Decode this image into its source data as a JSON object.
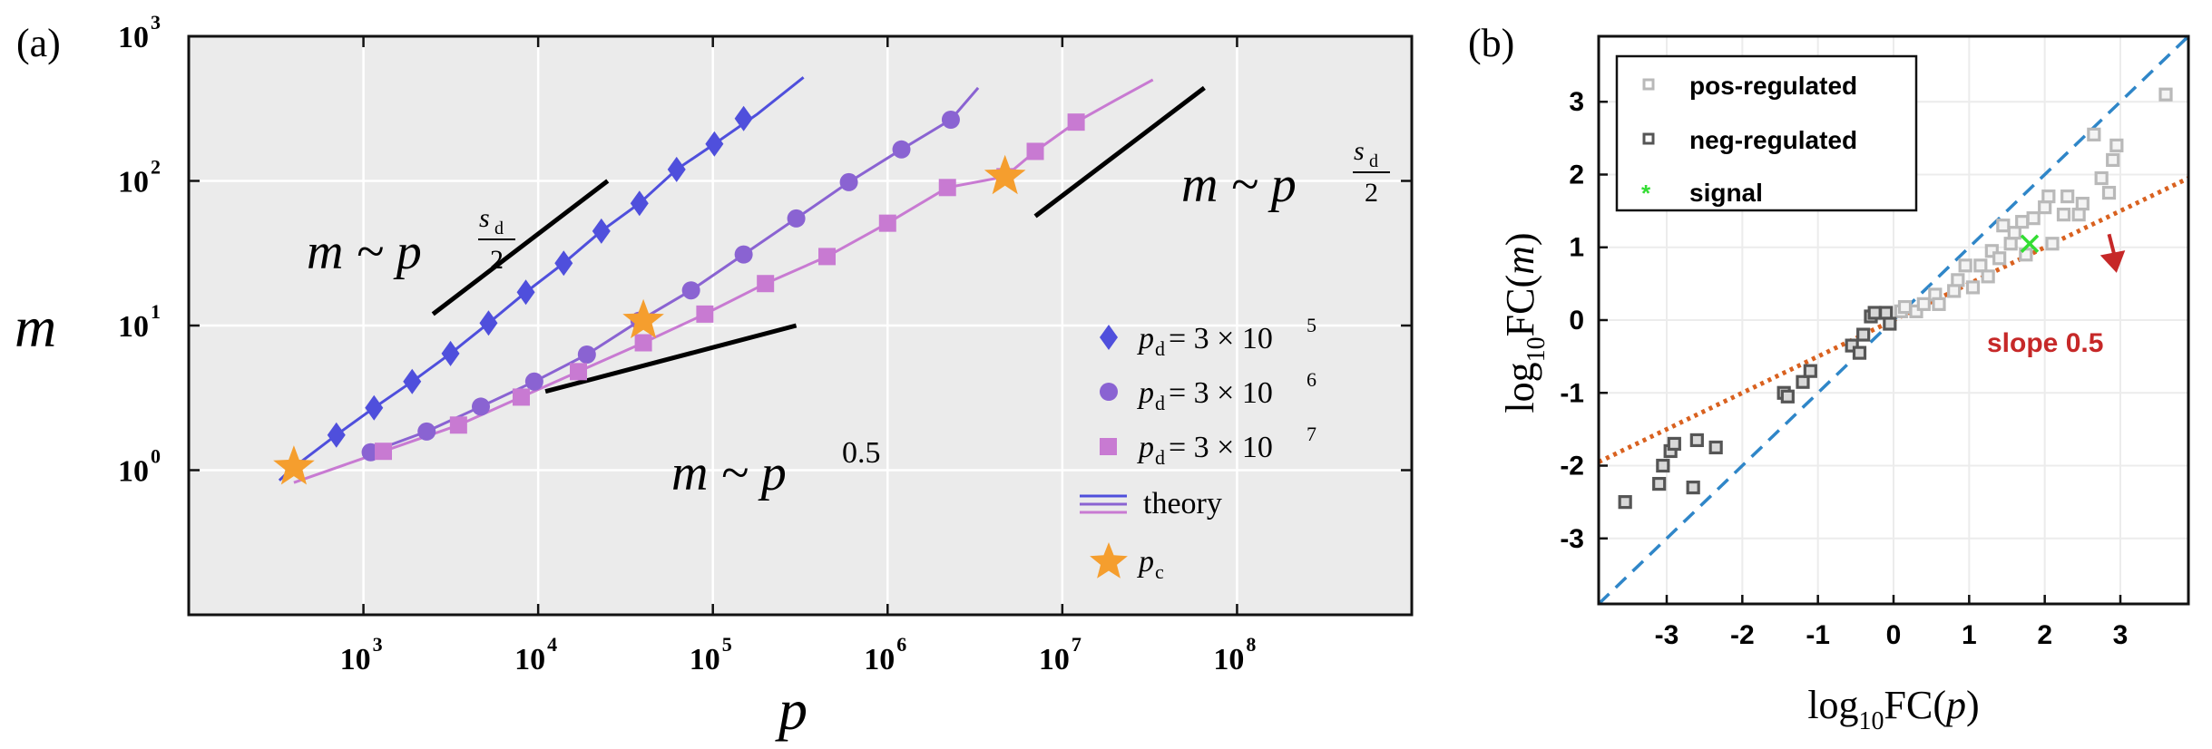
{
  "panel_a": {
    "panel_label": "(a)",
    "colors": {
      "bg": "#ebebeb",
      "s1": "#4f4fdc",
      "s2": "#8a63d2",
      "s3": "#c87ad2",
      "star": "#f59e2e",
      "guide": "#000000"
    },
    "chart_data": {
      "type": "line",
      "xlabel": "p",
      "ylabel": "m",
      "xscale": "log",
      "yscale": "log",
      "xlim": [
        100,
        1000000000
      ],
      "ylim": [
        0.1,
        1000
      ],
      "grid": true,
      "legend_position": "bottom-right",
      "xticks": [
        {
          "value": 1000,
          "base": "10",
          "exp": "3"
        },
        {
          "value": 10000,
          "base": "10",
          "exp": "4"
        },
        {
          "value": 100000,
          "base": "10",
          "exp": "5"
        },
        {
          "value": 1000000,
          "base": "10",
          "exp": "6"
        },
        {
          "value": 10000000,
          "base": "10",
          "exp": "7"
        },
        {
          "value": 100000000,
          "base": "10",
          "exp": "8"
        }
      ],
      "yticks": [
        {
          "value": 1,
          "base": "10",
          "exp": "0"
        },
        {
          "value": 10,
          "base": "10",
          "exp": "1"
        },
        {
          "value": 100,
          "base": "10",
          "exp": "2"
        },
        {
          "value": 1000,
          "base": "10",
          "exp": "3"
        }
      ],
      "series": [
        {
          "name": "p_d = 3 × 10^5",
          "marker": "diamond",
          "color": "#4f4fdc",
          "x": [
            700,
            1150,
            1900,
            3150,
            5200,
            8500,
            14000,
            23000,
            38000,
            62000,
            102000,
            150000
          ],
          "y": [
            1.75,
            2.7,
            4.1,
            6.4,
            10.4,
            17,
            27,
            45,
            70,
            120,
            180,
            270
          ],
          "theory": {
            "x": [
              330,
              380,
              700,
              1150,
              1900,
              3150,
              5200,
              8500,
              14000,
              23000,
              38000,
              62000,
              102000,
              180000,
              330000
            ],
            "y": [
              0.85,
              1.0,
              1.75,
              2.7,
              4.1,
              6.4,
              10.4,
              17,
              27,
              45,
              70,
              120,
              180,
              290,
              520
            ]
          }
        },
        {
          "name": "p_d = 3 × 10^6",
          "marker": "circle",
          "color": "#8a63d2",
          "x": [
            1100,
            2300,
            4700,
            9500,
            19000,
            38000,
            75000,
            150000,
            300000,
            600000,
            1200000,
            2300000
          ],
          "y": [
            1.33,
            1.85,
            2.75,
            4.1,
            6.3,
            10.8,
            17.5,
            31,
            55,
            98,
            165,
            265
          ],
          "theory": {
            "x": [
              1100,
              2300,
              4700,
              9500,
              19000,
              38000,
              75000,
              150000,
              300000,
              600000,
              1200000,
              2300000,
              3300000
            ],
            "y": [
              1.33,
              1.85,
              2.75,
              4.1,
              6.3,
              10.8,
              17.5,
              31,
              55,
              98,
              165,
              265,
              440
            ]
          }
        },
        {
          "name": "p_d = 3 × 10^7",
          "marker": "square",
          "color": "#c87ad2",
          "x": [
            1300,
            3500,
            8000,
            17000,
            40000,
            90000,
            200000,
            450000,
            1000000,
            2200000,
            4700000,
            7000000,
            12000000
          ],
          "y": [
            1.35,
            2.05,
            3.2,
            4.8,
            7.6,
            12,
            19.5,
            30,
            51,
            90,
            107,
            160,
            255
          ],
          "theory": {
            "x": [
              400,
              1300,
              3500,
              8000,
              17000,
              40000,
              90000,
              200000,
              450000,
              1000000,
              2200000,
              4700000,
              7000000,
              12000000,
              20000000,
              33000000
            ],
            "y": [
              0.82,
              1.35,
              2.05,
              3.2,
              4.8,
              7.6,
              12,
              19.5,
              30,
              51,
              90,
              107,
              160,
              255,
              360,
              500
            ]
          }
        }
      ],
      "stars": {
        "name": "p_c",
        "x": [
          400,
          40000,
          4700000
        ],
        "y": [
          1.05,
          10.8,
          107
        ]
      },
      "guides": [
        {
          "x": [
            2500,
            25000
          ],
          "y": [
            12,
            100
          ]
        },
        {
          "x": [
            11000,
            300000
          ],
          "y": [
            3.5,
            10
          ]
        },
        {
          "x": [
            7000000,
            65000000
          ],
          "y": [
            57,
            440
          ]
        }
      ]
    },
    "annotations": [
      {
        "text": "m ~ p",
        "exp_top": "s",
        "exp_sub": "d",
        "exp_bottom": "2"
      },
      {
        "text": "m ~ p",
        "exp": "0.5"
      },
      {
        "text": "m ~ p",
        "exp_top": "s",
        "exp_sub": "d",
        "exp_bottom": "2"
      }
    ],
    "legend": [
      {
        "label": "p",
        "sub": "d",
        "eq": " = 3 × 10",
        "exp": "5"
      },
      {
        "label": "p",
        "sub": "d",
        "eq": " = 3 × 10",
        "exp": "6"
      },
      {
        "label": "p",
        "sub": "d",
        "eq": " = 3 × 10",
        "exp": "7"
      },
      {
        "label": "theory"
      },
      {
        "label": "p",
        "sub": "c"
      }
    ]
  },
  "panel_b": {
    "panel_label": "(b)",
    "colors": {
      "pos": "#b9b9b9",
      "neg": "#555555",
      "signal": "#33dd33",
      "diag": "#2f86c8",
      "fit": "#d9611f",
      "slope": "#c62828"
    },
    "chart_data": {
      "type": "scatter",
      "xlabel": "log10FC(p)",
      "ylabel": "log10FC(m)",
      "xlim": [
        -3.9,
        3.9
      ],
      "ylim": [
        -3.9,
        3.9
      ],
      "xticks": [
        "-3",
        "-2",
        "-1",
        "0",
        "1",
        "2",
        "3"
      ],
      "yticks": [
        "-3",
        "-2",
        "-1",
        "0",
        "1",
        "2",
        "3"
      ],
      "grid": true,
      "legend_position": "top-left",
      "series": [
        {
          "name": "pos-regulated",
          "points": [
            [
              0.1,
              0.12
            ],
            [
              0.15,
              0.18
            ],
            [
              0.3,
              0.12
            ],
            [
              0.4,
              0.22
            ],
            [
              0.55,
              0.35
            ],
            [
              0.6,
              0.22
            ],
            [
              0.8,
              0.4
            ],
            [
              0.85,
              0.55
            ],
            [
              0.95,
              0.75
            ],
            [
              1.05,
              0.45
            ],
            [
              1.15,
              0.75
            ],
            [
              1.25,
              0.6
            ],
            [
              1.3,
              0.95
            ],
            [
              1.4,
              0.85
            ],
            [
              1.45,
              1.3
            ],
            [
              1.55,
              1.05
            ],
            [
              1.6,
              1.2
            ],
            [
              1.7,
              1.35
            ],
            [
              1.75,
              0.9
            ],
            [
              1.85,
              1.4
            ],
            [
              2.0,
              1.55
            ],
            [
              2.05,
              1.7
            ],
            [
              2.1,
              1.05
            ],
            [
              2.25,
              1.45
            ],
            [
              2.3,
              1.7
            ],
            [
              2.45,
              1.45
            ],
            [
              2.5,
              1.6
            ],
            [
              2.65,
              2.55
            ],
            [
              2.75,
              1.95
            ],
            [
              2.85,
              1.75
            ],
            [
              2.9,
              2.2
            ],
            [
              2.95,
              2.4
            ],
            [
              3.6,
              3.1
            ]
          ]
        },
        {
          "name": "neg-regulated",
          "points": [
            [
              -3.55,
              -2.5
            ],
            [
              -3.1,
              -2.25
            ],
            [
              -3.05,
              -2.0
            ],
            [
              -2.95,
              -1.8
            ],
            [
              -2.9,
              -1.7
            ],
            [
              -2.65,
              -2.3
            ],
            [
              -2.6,
              -1.65
            ],
            [
              -2.35,
              -1.75
            ],
            [
              -1.45,
              -1.0
            ],
            [
              -1.4,
              -1.05
            ],
            [
              -1.2,
              -0.85
            ],
            [
              -1.1,
              -0.7
            ],
            [
              -0.55,
              -0.35
            ],
            [
              -0.45,
              -0.45
            ],
            [
              -0.4,
              -0.2
            ],
            [
              -0.3,
              0.05
            ],
            [
              -0.25,
              0.1
            ],
            [
              -0.1,
              0.1
            ],
            [
              -0.05,
              -0.05
            ]
          ]
        },
        {
          "name": "signal",
          "points": [
            [
              1.8,
              1.05
            ]
          ]
        }
      ],
      "lines": [
        {
          "name": "diagonal",
          "x": [
            -3.9,
            3.9
          ],
          "y": [
            -3.9,
            3.9
          ],
          "style": "dashed"
        },
        {
          "name": "fit",
          "x": [
            -3.9,
            3.9
          ],
          "y": [
            -1.95,
            1.95
          ],
          "style": "dotted"
        }
      ],
      "annotation": {
        "text": "slope 0.5",
        "arrow_from": [
          2.85,
          1.18
        ],
        "arrow_to": [
          2.95,
          0.65
        ]
      }
    }
  }
}
